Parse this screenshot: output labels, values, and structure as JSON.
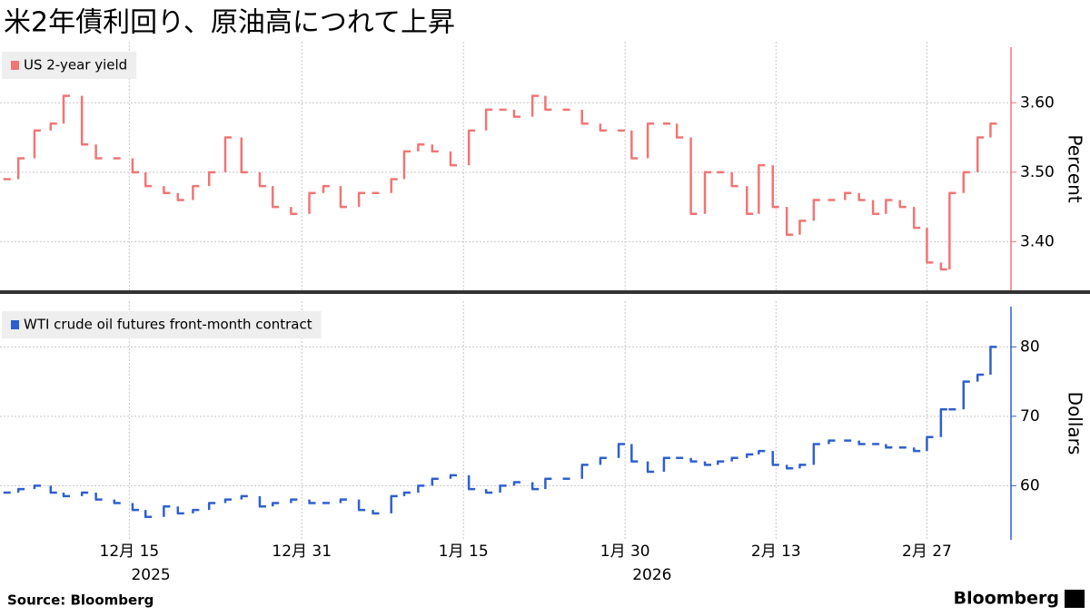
{
  "chart_data": [
    {
      "type": "step",
      "title": "米2年債利回り、原油高につれて上昇",
      "legend": "US 2-year yield",
      "y_label": "Percent",
      "color": "#f07575",
      "x": [
        3.4,
        4.7,
        6.2,
        7.7,
        8.9,
        10.6,
        11.9,
        13.6,
        15.3,
        16.5,
        18.2,
        19.5,
        20.9,
        22.4,
        23.9,
        25.4,
        27.1,
        28.3,
        30.0,
        31.7,
        33.0,
        34.6,
        36.3,
        37.6,
        39.3,
        40.5,
        41.8,
        43.1,
        44.8,
        46.5,
        48.1,
        49.4,
        50.7,
        52.4,
        53.6,
        55.3,
        57.0,
        58.7,
        60.4,
        61.6,
        63.1,
        64.6,
        65.8,
        67.1,
        68.4,
        69.6,
        70.9,
        72.3,
        73.4,
        74.7,
        76.0,
        77.2,
        78.5,
        79.9,
        81.4,
        82.7,
        84.0,
        85.2,
        86.5,
        87.8,
        89.0,
        90.3,
        91.1,
        92.4,
        93.7,
        94.9
      ],
      "values": [
        3.49,
        3.52,
        3.56,
        3.57,
        3.61,
        3.54,
        3.52,
        3.52,
        3.5,
        3.48,
        3.47,
        3.46,
        3.48,
        3.5,
        3.55,
        3.5,
        3.48,
        3.45,
        3.44,
        3.47,
        3.48,
        3.45,
        3.47,
        3.47,
        3.49,
        3.53,
        3.54,
        3.53,
        3.51,
        3.56,
        3.59,
        3.59,
        3.58,
        3.61,
        3.59,
        3.59,
        3.57,
        3.56,
        3.56,
        3.52,
        3.57,
        3.57,
        3.55,
        3.44,
        3.5,
        3.5,
        3.48,
        3.44,
        3.51,
        3.45,
        3.41,
        3.43,
        3.46,
        3.46,
        3.47,
        3.46,
        3.44,
        3.46,
        3.45,
        3.42,
        3.37,
        3.36,
        3.47,
        3.5,
        3.55,
        3.57
      ],
      "xlim": [
        3,
        96.8
      ],
      "ylim": [
        3.33,
        3.68
      ],
      "yticks": [
        {
          "value": 3.4,
          "label": "3.40"
        },
        {
          "value": 3.5,
          "label": "3.50"
        },
        {
          "value": 3.6,
          "label": "3.60"
        }
      ],
      "grid": true
    },
    {
      "type": "step",
      "legend": "WTI crude oil futures front-month contract",
      "y_label": "Dollars",
      "color": "#2f5fcf",
      "x": [
        3.4,
        4.7,
        6.2,
        7.7,
        8.9,
        10.6,
        11.9,
        13.6,
        15.3,
        16.5,
        18.2,
        19.5,
        20.9,
        22.4,
        23.9,
        25.4,
        27.1,
        28.3,
        30.0,
        31.7,
        33.0,
        34.6,
        36.3,
        37.6,
        39.3,
        40.5,
        41.8,
        43.1,
        44.8,
        46.5,
        48.1,
        49.4,
        50.7,
        52.4,
        53.6,
        55.3,
        57.0,
        58.7,
        60.4,
        61.6,
        63.1,
        64.6,
        65.8,
        67.1,
        68.4,
        69.6,
        70.9,
        72.3,
        73.4,
        74.7,
        76.0,
        77.2,
        78.5,
        79.9,
        81.4,
        82.7,
        84.0,
        85.2,
        86.5,
        87.8,
        89.0,
        90.3,
        91.1,
        92.4,
        93.7,
        94.9
      ],
      "values": [
        59,
        59.5,
        60,
        59,
        58.5,
        59,
        58,
        57.5,
        56.5,
        55.5,
        57,
        56,
        56.5,
        57.5,
        58,
        58.5,
        57,
        57.5,
        58,
        57.5,
        57.5,
        58,
        56.5,
        56,
        58.5,
        59,
        60,
        61,
        61.5,
        59.5,
        59,
        60,
        60.5,
        59.5,
        61,
        61,
        63,
        64,
        66,
        63.5,
        62,
        64,
        64,
        63.5,
        63,
        63.5,
        64,
        64.5,
        65,
        63,
        62.5,
        63,
        66,
        66.5,
        66.5,
        66,
        66,
        65.5,
        65.5,
        65,
        67,
        71,
        71,
        75,
        76,
        80
      ],
      "xlim": [
        3,
        96.8
      ],
      "ylim": [
        52.2,
        85.8
      ],
      "yticks": [
        60,
        70,
        80
      ],
      "grid": true,
      "xticks": [
        {
          "value": 15,
          "label": "12月 15"
        },
        {
          "value": 31,
          "label": "12月 31"
        },
        {
          "value": 46,
          "label": "1月 15"
        },
        {
          "value": 61,
          "label": "1月 30"
        },
        {
          "value": 75,
          "label": "2月 13"
        },
        {
          "value": 89,
          "label": "2月 27"
        }
      ],
      "year_labels": [
        {
          "value": 17,
          "label": "2025"
        },
        {
          "value": 63.5,
          "label": "2026"
        }
      ]
    }
  ],
  "source": "Source:  Bloomberg",
  "brand": "Bloomberg"
}
